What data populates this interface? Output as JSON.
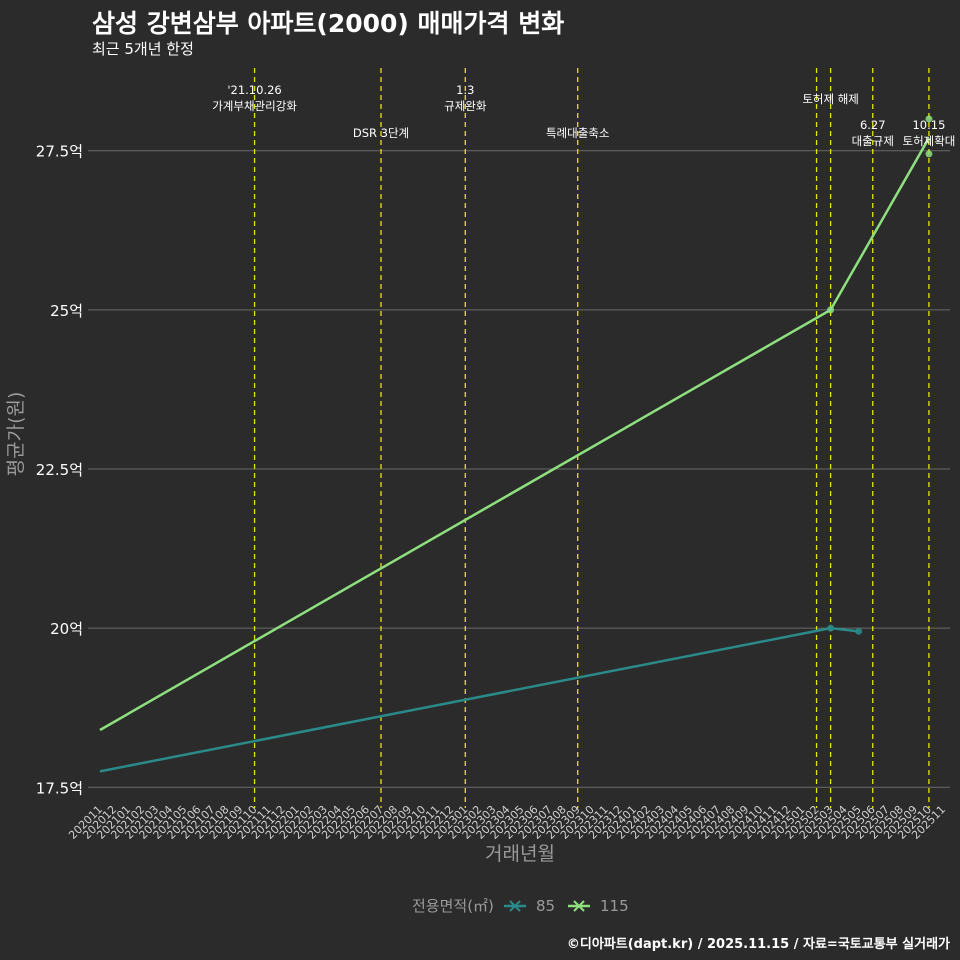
{
  "title": "삼성 강변삼부 아파트(2000) 매매가격 변화",
  "subtitle": "최근 5개년 한정",
  "caption": "©디아파트(dapt.kr) / 2025.11.15 / 자료=국토교통부 실거래가",
  "colors": {
    "background": "#2b2b2b",
    "grid": "#6a6a6a",
    "event_line": "#e6e600",
    "series_85": "#2a8a8a",
    "series_115": "#8ee07f"
  },
  "chart_data": {
    "type": "line",
    "title": "삼성 강변삼부 아파트(2000) 매매가격 변화",
    "subtitle": "최근 5개년 한정",
    "xlabel": "거래년월",
    "ylabel": "평균가(원)",
    "ylim": [
      17.3,
      28.8
    ],
    "y_ticks": [
      {
        "value": 17.5,
        "label": "17.5억"
      },
      {
        "value": 20,
        "label": "20억"
      },
      {
        "value": 22.5,
        "label": "22.5억"
      },
      {
        "value": 25,
        "label": "25억"
      },
      {
        "value": 27.5,
        "label": "27.5억"
      }
    ],
    "categories": [
      "202011",
      "202012",
      "202101",
      "202102",
      "202103",
      "202104",
      "202105",
      "202106",
      "202107",
      "202108",
      "202109",
      "202110",
      "202111",
      "202112",
      "202201",
      "202202",
      "202203",
      "202204",
      "202205",
      "202206",
      "202207",
      "202208",
      "202209",
      "202210",
      "202211",
      "202212",
      "202301",
      "202302",
      "202303",
      "202304",
      "202305",
      "202306",
      "202307",
      "202308",
      "202309",
      "202310",
      "202311",
      "202312",
      "202401",
      "202402",
      "202403",
      "202404",
      "202405",
      "202406",
      "202407",
      "202408",
      "202409",
      "202410",
      "202411",
      "202412",
      "202501",
      "202502",
      "202503",
      "202504",
      "202505",
      "202506",
      "202507",
      "202508",
      "202509",
      "202510",
      "202511"
    ],
    "legend": {
      "title": "전용면적(㎡)",
      "position": "bottom"
    },
    "series": [
      {
        "name": "85",
        "color": "#2a8a8a",
        "points": [
          {
            "x": "202011",
            "y": 17.75
          },
          {
            "x": "202503",
            "y": 20.0
          },
          {
            "x": "202505",
            "y": 19.95
          }
        ],
        "markers": [
          {
            "x": "202503",
            "y": 20.0
          },
          {
            "x": "202505",
            "y": 19.95
          }
        ]
      },
      {
        "name": "115",
        "color": "#8ee07f",
        "points": [
          {
            "x": "202011",
            "y": 18.4
          },
          {
            "x": "202503",
            "y": 25.0
          },
          {
            "x": "202510",
            "y": 27.7
          }
        ],
        "markers": [
          {
            "x": "202503",
            "y": 25.0
          },
          {
            "x": "202510",
            "y": 28.0
          },
          {
            "x": "202510",
            "y": 27.45
          }
        ]
      }
    ],
    "events": [
      {
        "x": "202110",
        "lines": [
          "'21.10.26",
          "가계부채관리강화"
        ],
        "row": 0
      },
      {
        "x": "202207",
        "lines": [
          "DSR 3단계"
        ],
        "row": 2
      },
      {
        "x": "202301",
        "lines": [
          "1.3",
          "규제완화"
        ],
        "row": 0
      },
      {
        "x": "202309",
        "lines": [
          "특례대출축소"
        ],
        "row": 2
      },
      {
        "x": "202502",
        "lines": [],
        "row": 0
      },
      {
        "x": "202503",
        "lines": [
          "토허제 해제"
        ],
        "row": 1
      },
      {
        "x": "202506",
        "lines": [
          "6.27",
          "대출규제"
        ],
        "row": 3
      },
      {
        "x": "202510",
        "lines": [
          "10.15",
          "토허제확대"
        ],
        "row": 3
      }
    ]
  }
}
